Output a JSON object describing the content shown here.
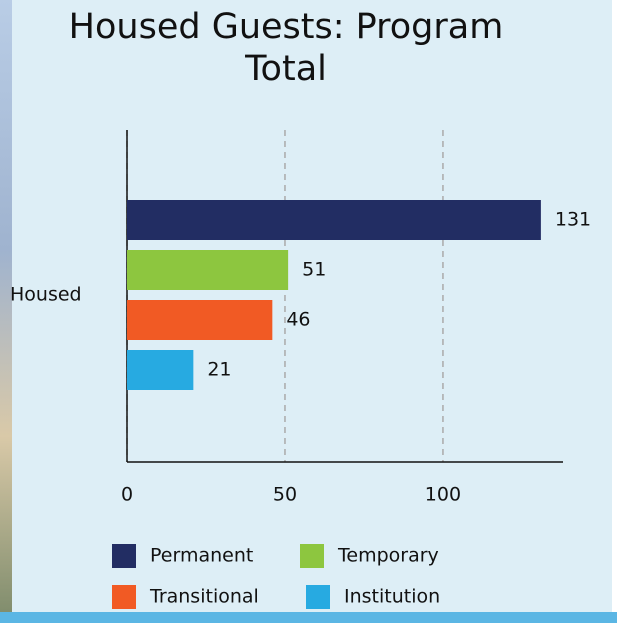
{
  "chart_data": {
    "type": "bar",
    "orientation": "horizontal",
    "title": "Housed Guests: Program Total",
    "categories": [
      "Housed"
    ],
    "series": [
      {
        "name": "Permanent",
        "color": "#222d63",
        "values": [
          131
        ]
      },
      {
        "name": "Temporary",
        "color": "#8dc63f",
        "values": [
          51
        ]
      },
      {
        "name": "Transitional",
        "color": "#f15a24",
        "values": [
          46
        ]
      },
      {
        "name": "Institution",
        "color": "#27aae1",
        "values": [
          21
        ]
      }
    ],
    "xlim": [
      0,
      138
    ],
    "xticks": [
      0,
      50,
      100
    ],
    "grid": true,
    "legend": "bottom"
  }
}
